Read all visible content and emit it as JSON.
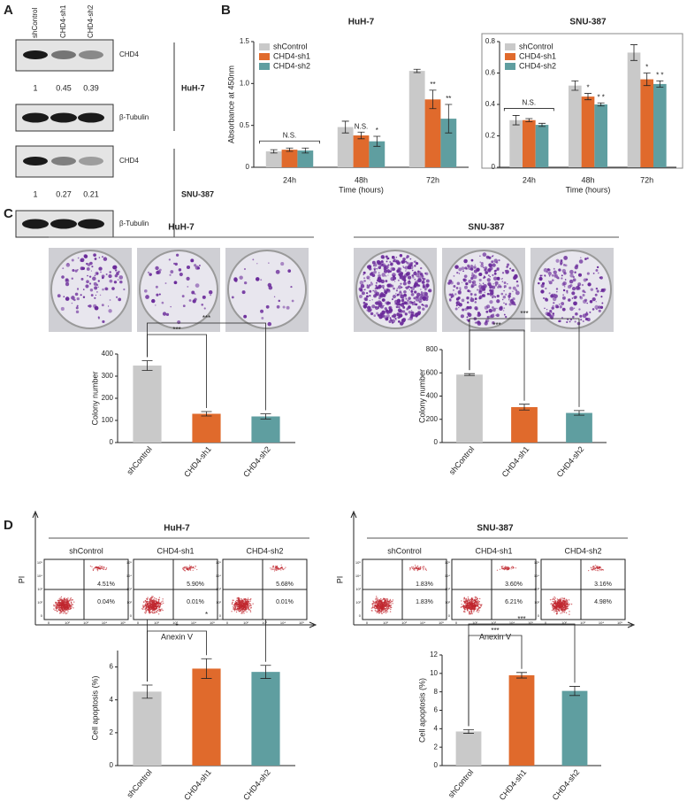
{
  "panel_labels": [
    "A",
    "B",
    "C",
    "D"
  ],
  "blot": {
    "lanes": [
      "shControl",
      "CHD4-sh1",
      "CHD4-sh2"
    ],
    "groups": [
      {
        "cell_line": "HuH-7",
        "target": "CHD4",
        "quant": [
          1,
          0.45,
          0.39
        ],
        "loading": "β-Tubulin"
      },
      {
        "cell_line": "SNU-387",
        "target": "CHD4",
        "quant": [
          1,
          0.27,
          0.21
        ],
        "loading": "β-Tubulin"
      }
    ]
  },
  "colony": {
    "groups": [
      {
        "title": "HuH-7",
        "labels": [
          "shControl",
          "CHD4-sh1",
          "CHD4-sh2"
        ]
      },
      {
        "title": "SNU-387",
        "labels": [
          "shControl",
          "CHD4-sh1",
          "CHD4-sh2"
        ]
      }
    ]
  },
  "flow": {
    "x_label": "Anexin V",
    "y_label": "PI",
    "ticks": [
      "0",
      "10²",
      "10³",
      "10⁴",
      "10⁵"
    ],
    "groups": [
      {
        "title": "HuH-7",
        "plots": [
          {
            "label": "shControl",
            "upper_right": "4.51%",
            "lower_right": "0.04%"
          },
          {
            "label": "CHD4-sh1",
            "upper_right": "5.90%",
            "lower_right": "0.01%"
          },
          {
            "label": "CHD4-sh2",
            "upper_right": "5.68%",
            "lower_right": "0.01%"
          }
        ]
      },
      {
        "title": "SNU-387",
        "plots": [
          {
            "label": "shControl",
            "upper_right": "1.83%",
            "lower_right": "1.83%"
          },
          {
            "label": "CHD4-sh1",
            "upper_right": "3.60%",
            "lower_right": "6.21%"
          },
          {
            "label": "CHD4-sh2",
            "upper_right": "3.16%",
            "lower_right": "4.98%"
          }
        ]
      }
    ]
  },
  "chart_data": [
    {
      "type": "grouped_bar",
      "title": "HuH-7",
      "ylabel": "Absorbance at 450nm",
      "xlabel": "Time (hours)",
      "categories": [
        "24h",
        "48h",
        "72h"
      ],
      "series": [
        {
          "name": "shControl",
          "color": "#c9c9c9",
          "values": [
            0.19,
            0.48,
            1.15
          ],
          "errors": [
            0.02,
            0.07,
            0.02
          ],
          "significance": [
            null,
            null,
            null
          ]
        },
        {
          "name": "CHD4-sh1",
          "color": "#e06a2c",
          "values": [
            0.21,
            0.38,
            0.81
          ],
          "errors": [
            0.02,
            0.04,
            0.11
          ],
          "significance": [
            null,
            "N.S.",
            "**"
          ]
        },
        {
          "name": "CHD4-sh2",
          "color": "#5f9ea0",
          "values": [
            0.2,
            0.31,
            0.58
          ],
          "errors": [
            0.03,
            0.06,
            0.17
          ],
          "significance": [
            null,
            "*",
            "**"
          ]
        }
      ],
      "group_significance": [
        "N.S.",
        null,
        null
      ],
      "ylim": [
        0,
        1.5
      ],
      "yticks": [
        0,
        0.5,
        {
          "value": 1,
          "label": "1.0"
        },
        1.5
      ],
      "legend": "upper left",
      "frame": false
    },
    {
      "type": "grouped_bar",
      "title": "SNU-387",
      "ylabel": null,
      "xlabel": "Time (hours)",
      "categories": [
        "24h",
        "48h",
        "72h"
      ],
      "series": [
        {
          "name": "shControl",
          "color": "#c9c9c9",
          "values": [
            0.3,
            0.52,
            0.73
          ],
          "errors": [
            0.03,
            0.03,
            0.05
          ],
          "significance": [
            null,
            null,
            null
          ]
        },
        {
          "name": "CHD4-sh1",
          "color": "#e06a2c",
          "values": [
            0.3,
            0.45,
            0.56
          ],
          "errors": [
            0.01,
            0.02,
            0.04
          ],
          "significance": [
            null,
            "*",
            "*"
          ]
        },
        {
          "name": "CHD4-sh2",
          "color": "#5f9ea0",
          "values": [
            0.27,
            0.4,
            0.53
          ],
          "errors": [
            0.01,
            0.01,
            0.02
          ],
          "significance": [
            null,
            "* *",
            "* *"
          ]
        }
      ],
      "group_significance": [
        "N.S.",
        null,
        null
      ],
      "ylim": [
        0,
        0.8
      ],
      "yticks": [
        0,
        0.2,
        0.4,
        0.6,
        0.8
      ],
      "legend": "upper left",
      "frame": true
    },
    {
      "type": "bar",
      "ylabel": "Colony number",
      "categories": [
        "shControl",
        "CHD4-sh1",
        "CHD4-sh2"
      ],
      "values": [
        348,
        130,
        118
      ],
      "errors": [
        22,
        10,
        12
      ],
      "colors": [
        "#c9c9c9",
        "#e06a2c",
        "#5f9ea0"
      ],
      "significance": [
        "***",
        "***"
      ],
      "ylim": [
        0,
        400
      ],
      "yticks": [
        0,
        100,
        200,
        300,
        400
      ]
    },
    {
      "type": "bar",
      "ylabel": "Colony number",
      "categories": [
        "shControl",
        "CHD4-sh1",
        "CHD4-sh2"
      ],
      "values": [
        585,
        305,
        255
      ],
      "errors": [
        8,
        25,
        20
      ],
      "colors": [
        "#c9c9c9",
        "#e06a2c",
        "#5f9ea0"
      ],
      "significance": [
        "***",
        "***"
      ],
      "ylim": [
        0,
        800
      ],
      "yticks": [
        0,
        200,
        400,
        600,
        800
      ]
    },
    {
      "type": "bar",
      "ylabel": "Cell apoptosis (%)",
      "categories": [
        "shControl",
        "CHD4-sh1",
        "CHD4-sh2"
      ],
      "values": [
        4.5,
        5.9,
        5.7
      ],
      "errors": [
        0.4,
        0.6,
        0.4
      ],
      "colors": [
        "#c9c9c9",
        "#e06a2c",
        "#5f9ea0"
      ],
      "significance": [
        "*",
        "*"
      ],
      "ylim": [
        0,
        7
      ],
      "yticks": [
        0,
        2,
        4,
        6
      ]
    },
    {
      "type": "bar",
      "ylabel": "Cell apoptosis (%)",
      "categories": [
        "shControl",
        "CHD4-sh1",
        "CHD4-sh2"
      ],
      "values": [
        3.7,
        9.8,
        8.1
      ],
      "errors": [
        0.2,
        0.3,
        0.5
      ],
      "colors": [
        "#c9c9c9",
        "#e06a2c",
        "#5f9ea0"
      ],
      "significance": [
        "***",
        "***"
      ],
      "ylim": [
        0,
        12
      ],
      "yticks": [
        0,
        2,
        4,
        6,
        8,
        10,
        12
      ]
    }
  ]
}
